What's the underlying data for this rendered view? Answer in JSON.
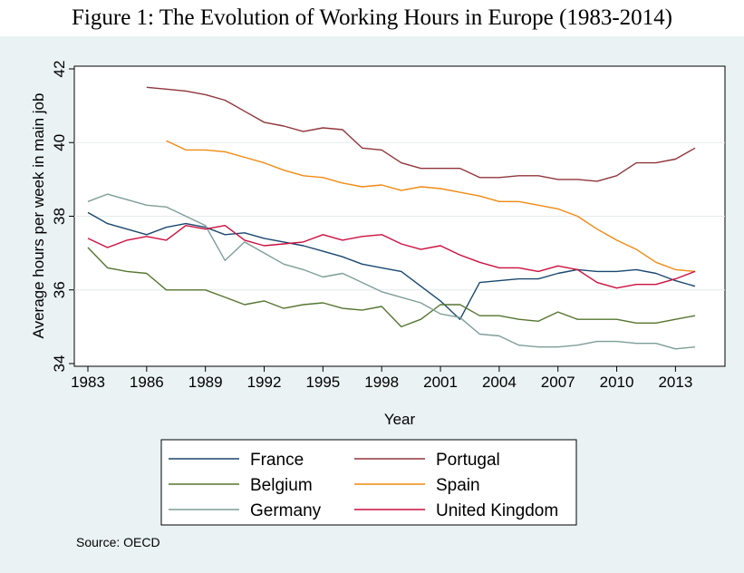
{
  "title": "Figure 1: The Evolution of Working Hours in Europe (1983-2014)",
  "source_note": "Source: OECD",
  "chart_data": {
    "type": "line",
    "xlabel": "Year",
    "ylabel": "Average hours per week in main job",
    "xlim": [
      1983,
      2015.5
    ],
    "ylim": [
      34,
      42
    ],
    "xticks": [
      1983,
      1986,
      1989,
      1992,
      1995,
      1998,
      2001,
      2004,
      2007,
      2010,
      2013
    ],
    "yticks": [
      34,
      36,
      38,
      40,
      42
    ],
    "grid": "horizontal",
    "legend_position": "bottom",
    "series": [
      {
        "name": "France",
        "color": "#1a476f",
        "x": [
          1983,
          1984,
          1985,
          1986,
          1987,
          1988,
          1989,
          1990,
          1991,
          1992,
          1993,
          1994,
          1995,
          1996,
          1997,
          1998,
          1999,
          2000,
          2001,
          2002,
          2003,
          2004,
          2005,
          2006,
          2007,
          2008,
          2009,
          2010,
          2011,
          2012,
          2013,
          2014
        ],
        "y": [
          38.1,
          37.8,
          37.65,
          37.5,
          37.7,
          37.8,
          37.7,
          37.5,
          37.55,
          37.4,
          37.3,
          37.2,
          37.05,
          36.9,
          36.7,
          36.6,
          36.5,
          36.1,
          35.7,
          35.2,
          36.2,
          36.25,
          36.3,
          36.3,
          36.45,
          36.55,
          36.5,
          36.5,
          36.55,
          36.45,
          36.25,
          36.1
        ]
      },
      {
        "name": "Portugal",
        "color": "#90353b",
        "x": [
          1986,
          1987,
          1988,
          1989,
          1990,
          1991,
          1992,
          1993,
          1994,
          1995,
          1996,
          1997,
          1998,
          1999,
          2000,
          2001,
          2002,
          2003,
          2004,
          2005,
          2006,
          2007,
          2008,
          2009,
          2010,
          2011,
          2012,
          2013,
          2014
        ],
        "y": [
          41.5,
          41.45,
          41.4,
          41.3,
          41.15,
          40.85,
          40.55,
          40.45,
          40.3,
          40.4,
          40.35,
          39.85,
          39.8,
          39.45,
          39.3,
          39.3,
          39.3,
          39.05,
          39.05,
          39.1,
          39.1,
          39.0,
          39.0,
          38.95,
          39.1,
          39.45,
          39.45,
          39.55,
          39.85
        ]
      },
      {
        "name": "Belgium",
        "color": "#55752f",
        "x": [
          1983,
          1984,
          1985,
          1986,
          1987,
          1988,
          1989,
          1990,
          1991,
          1992,
          1993,
          1994,
          1995,
          1996,
          1997,
          1998,
          1999,
          2000,
          2001,
          2002,
          2003,
          2004,
          2005,
          2006,
          2007,
          2008,
          2009,
          2010,
          2011,
          2012,
          2013,
          2014
        ],
        "y": [
          37.15,
          36.6,
          36.5,
          36.45,
          36.0,
          36.0,
          36.0,
          35.8,
          35.6,
          35.7,
          35.5,
          35.6,
          35.65,
          35.5,
          35.45,
          35.55,
          35.0,
          35.2,
          35.6,
          35.6,
          35.3,
          35.3,
          35.2,
          35.15,
          35.4,
          35.2,
          35.2,
          35.2,
          35.1,
          35.1,
          35.2,
          35.3
        ]
      },
      {
        "name": "Spain",
        "color": "#f08a12",
        "x": [
          1987,
          1988,
          1989,
          1990,
          1991,
          1992,
          1993,
          1994,
          1995,
          1996,
          1997,
          1998,
          1999,
          2000,
          2001,
          2002,
          2003,
          2004,
          2005,
          2006,
          2007,
          2008,
          2009,
          2010,
          2011,
          2012,
          2013,
          2014
        ],
        "y": [
          40.05,
          39.8,
          39.8,
          39.75,
          39.6,
          39.45,
          39.25,
          39.1,
          39.05,
          38.9,
          38.8,
          38.85,
          38.7,
          38.8,
          38.75,
          38.65,
          38.55,
          38.4,
          38.4,
          38.3,
          38.2,
          38.0,
          37.65,
          37.35,
          37.1,
          36.75,
          36.55,
          36.5
        ]
      },
      {
        "name": "Germany",
        "color": "#7d9e97",
        "x": [
          1983,
          1984,
          1985,
          1986,
          1987,
          1988,
          1989,
          1990,
          1991,
          1992,
          1993,
          1994,
          1995,
          1996,
          1997,
          1998,
          1999,
          2000,
          2001,
          2002,
          2003,
          2004,
          2005,
          2006,
          2007,
          2008,
          2009,
          2010,
          2011,
          2012,
          2013,
          2014
        ],
        "y": [
          38.4,
          38.6,
          38.45,
          38.3,
          38.25,
          38.0,
          37.75,
          36.8,
          37.3,
          37.0,
          36.7,
          36.55,
          36.35,
          36.45,
          36.2,
          35.95,
          35.8,
          35.65,
          35.35,
          35.25,
          34.8,
          34.75,
          34.5,
          34.45,
          34.45,
          34.5,
          34.6,
          34.6,
          34.55,
          34.55,
          34.4,
          34.45
        ]
      },
      {
        "name": "United Kingdom",
        "color": "#cc0f3f",
        "x": [
          1983,
          1984,
          1985,
          1986,
          1987,
          1988,
          1989,
          1990,
          1991,
          1992,
          1993,
          1994,
          1995,
          1996,
          1997,
          1998,
          1999,
          2000,
          2001,
          2002,
          2003,
          2004,
          2005,
          2006,
          2007,
          2008,
          2009,
          2010,
          2011,
          2012,
          2013,
          2014
        ],
        "y": [
          37.4,
          37.15,
          37.35,
          37.45,
          37.35,
          37.75,
          37.65,
          37.75,
          37.35,
          37.2,
          37.25,
          37.3,
          37.5,
          37.35,
          37.45,
          37.5,
          37.25,
          37.1,
          37.2,
          36.95,
          36.75,
          36.6,
          36.6,
          36.5,
          36.65,
          36.55,
          36.2,
          36.05,
          36.15,
          36.15,
          36.3,
          36.5
        ]
      }
    ]
  }
}
